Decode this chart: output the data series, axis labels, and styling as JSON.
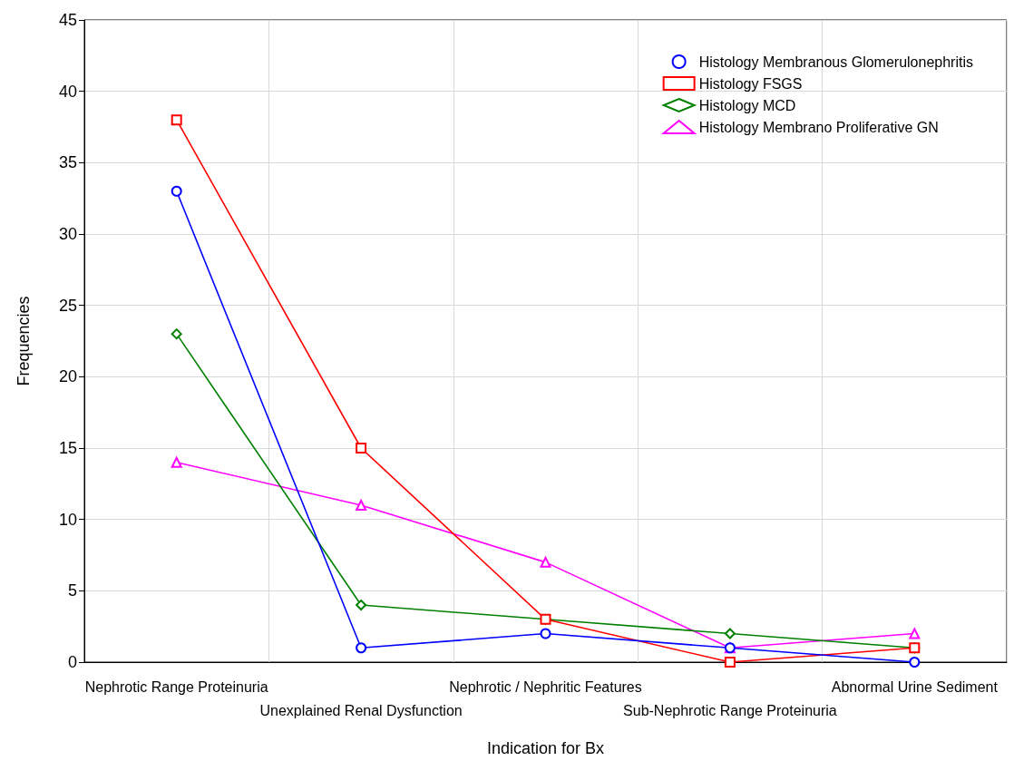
{
  "chart_data": {
    "type": "line",
    "xlabel": "Indication for Bx",
    "ylabel": "Frequencies",
    "categories": [
      "Nephrotic Range Proteinuria",
      "Unexplained Renal Dysfunction",
      "Nephrotic / Nephritic Features",
      "Sub-Nephrotic Range Proteinuria",
      "Abnormal Urine Sediment"
    ],
    "series": [
      {
        "name": "Histology Membranous Glomerulonephritis",
        "color": "#0000ff",
        "marker": "circle",
        "values": [
          33,
          1,
          2,
          1,
          0
        ]
      },
      {
        "name": "Histology FSGS",
        "color": "#ff0000",
        "marker": "square",
        "values": [
          38,
          15,
          3,
          0,
          1
        ]
      },
      {
        "name": "Histology MCD",
        "color": "#008000",
        "marker": "diamond",
        "values": [
          23,
          4,
          3,
          2,
          1
        ]
      },
      {
        "name": "Histology Membrano Proliferative GN",
        "color": "#ff00ff",
        "marker": "triangle",
        "values": [
          14,
          11,
          7,
          1,
          2
        ]
      }
    ],
    "ylim": [
      0,
      45
    ],
    "yticks": [
      0,
      5,
      10,
      15,
      20,
      25,
      30,
      35,
      40,
      45
    ],
    "grid": true,
    "legend": "top right",
    "line_style": "solid"
  }
}
